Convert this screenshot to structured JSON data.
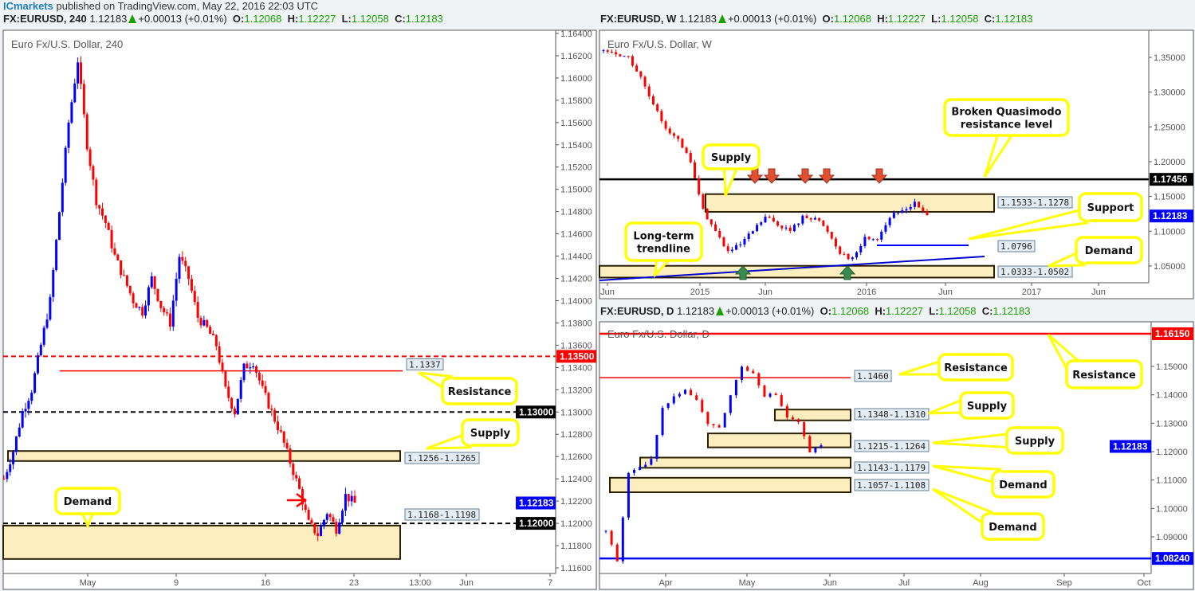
{
  "header": {
    "brand": "ICmarkets",
    "published": " published on TradingView.com, May 22, 2016 22:03 UTC"
  },
  "quote": {
    "last": "1.12183",
    "change": "+0.00013 (+0.01%)",
    "o_label": "O:",
    "o": "1.12068",
    "h_label": "H:",
    "h": "1.12227",
    "l_label": "L:",
    "l": "1.12058",
    "c_label": "C:",
    "c": "1.12183"
  },
  "colors": {
    "up": "#0000ff",
    "down": "#ff0000",
    "callout": "#ffff00",
    "zone": "#fdeec0",
    "last_price": "#0000ff"
  },
  "chart_data": [
    {
      "id": "h4",
      "type": "candlestick",
      "symbol": "FX:EURUSD, 240",
      "title": "Euro Fx/U.S. Dollar, 240",
      "yticks": [
        "1.16400",
        "1.16200",
        "1.16000",
        "1.15800",
        "1.15600",
        "1.15400",
        "1.15200",
        "1.15000",
        "1.14800",
        "1.14600",
        "1.14400",
        "1.14200",
        "1.14000",
        "1.13800",
        "1.13600",
        "1.13400",
        "1.13200",
        "1.13000",
        "1.12800",
        "1.12600",
        "1.12400",
        "1.12200",
        "1.12000",
        "1.11800",
        "1.11600"
      ],
      "ylim": [
        1.116,
        1.164
      ],
      "xticks": [
        "May",
        "9",
        "16",
        "23",
        "13:00",
        "Jun",
        "7"
      ],
      "closes": [
        1.124,
        1.1265,
        1.13,
        1.132,
        1.136,
        1.14,
        1.148,
        1.156,
        1.1616,
        1.154,
        1.149,
        1.147,
        1.144,
        1.142,
        1.14,
        1.139,
        1.142,
        1.1395,
        1.138,
        1.144,
        1.142,
        1.1385,
        1.1375,
        1.136,
        1.132,
        1.13,
        1.134,
        1.1345,
        1.132,
        1.13,
        1.128,
        1.1255,
        1.123,
        1.12,
        1.119,
        1.121,
        1.1195,
        1.1225,
        1.1218
      ],
      "last_price": "1.12183",
      "levels": [
        {
          "label": "1.13500",
          "price": 1.135,
          "style": "red-dashed"
        },
        {
          "label": "1.13000",
          "price": 1.13,
          "style": "black-dashed"
        },
        {
          "label": "1.12000",
          "price": 1.12,
          "style": "black-dashed"
        }
      ],
      "resistance_line": {
        "label": "1.1337",
        "price": 1.1337
      },
      "zones": [
        {
          "label": "1.1256-1.1265",
          "low": 1.1256,
          "high": 1.1265
        },
        {
          "label": "1.1168-1.1198",
          "low": 1.1168,
          "high": 1.1198
        }
      ],
      "callouts": [
        "Resistance",
        "Supply",
        "Demand"
      ]
    },
    {
      "id": "w",
      "type": "candlestick",
      "symbol": "FX:EURUSD, W",
      "title": "Euro Fx/U.S. Dollar, W",
      "yticks": [
        "1.35000",
        "1.30000",
        "1.25000",
        "1.20000",
        "1.15000",
        "1.10000",
        "1.05000"
      ],
      "ylim": [
        1.01,
        1.39
      ],
      "xticks": [
        "Jun",
        "2015",
        "Jun",
        "2016",
        "Jun",
        "2017",
        "Jun"
      ],
      "closes": [
        1.36,
        1.355,
        1.35,
        1.32,
        1.28,
        1.25,
        1.23,
        1.2,
        1.13,
        1.1,
        1.07,
        1.08,
        1.1,
        1.12,
        1.11,
        1.1,
        1.12,
        1.12,
        1.1,
        1.07,
        1.06,
        1.09,
        1.09,
        1.12,
        1.13,
        1.14,
        1.1218
      ],
      "last_price": "1.12183",
      "levels": [
        {
          "label": "1.17456",
          "price": 1.17456,
          "style": "black-solid"
        }
      ],
      "support_line": {
        "label": "1.0796",
        "price": 1.0796
      },
      "zones": [
        {
          "label": "1.1533-1.1278",
          "low": 1.1278,
          "high": 1.1533
        },
        {
          "label": "1.0333-1.0502",
          "low": 1.0333,
          "high": 1.0502
        }
      ],
      "callouts": [
        "Broken Quasimodo",
        "resistance level",
        "Supply",
        "Support",
        "Demand",
        "Long-term",
        "trendline"
      ]
    },
    {
      "id": "d",
      "type": "candlestick",
      "symbol": "FX:EURUSD, D",
      "title": "Euro Fx/U.S. Dollar, D",
      "yticks": [
        "1.15000",
        "1.14000",
        "1.13000",
        "1.12000",
        "1.11000",
        "1.10000",
        "1.09000"
      ],
      "ylim": [
        1.077,
        1.166
      ],
      "xticks": [
        "Apr",
        "May",
        "Jun",
        "Jul",
        "Aug",
        "Sep",
        "Oct"
      ],
      "closes": [
        1.092,
        1.082,
        1.112,
        1.114,
        1.117,
        1.135,
        1.14,
        1.142,
        1.138,
        1.13,
        1.128,
        1.14,
        1.15,
        1.148,
        1.14,
        1.14,
        1.132,
        1.13,
        1.12,
        1.1218
      ],
      "last_price": "1.12183",
      "levels": [
        {
          "label": "1.16150",
          "price": 1.1615,
          "style": "red-solid"
        },
        {
          "label": "1.08240",
          "price": 1.0824,
          "style": "blue-solid"
        }
      ],
      "resistance_line": {
        "label": "1.1460",
        "price": 1.146
      },
      "zones": [
        {
          "label": "1.1348-1.1310",
          "low": 1.131,
          "high": 1.1348
        },
        {
          "label": "1.1215-1.1264",
          "low": 1.1215,
          "high": 1.1264
        },
        {
          "label": "1.1143-1.1179",
          "low": 1.1143,
          "high": 1.1179
        },
        {
          "label": "1.1057-1.1108",
          "low": 1.1057,
          "high": 1.1108
        }
      ],
      "callouts": [
        "Resistance",
        "Resistance",
        "Supply",
        "Supply",
        "Demand",
        "Demand"
      ]
    }
  ]
}
